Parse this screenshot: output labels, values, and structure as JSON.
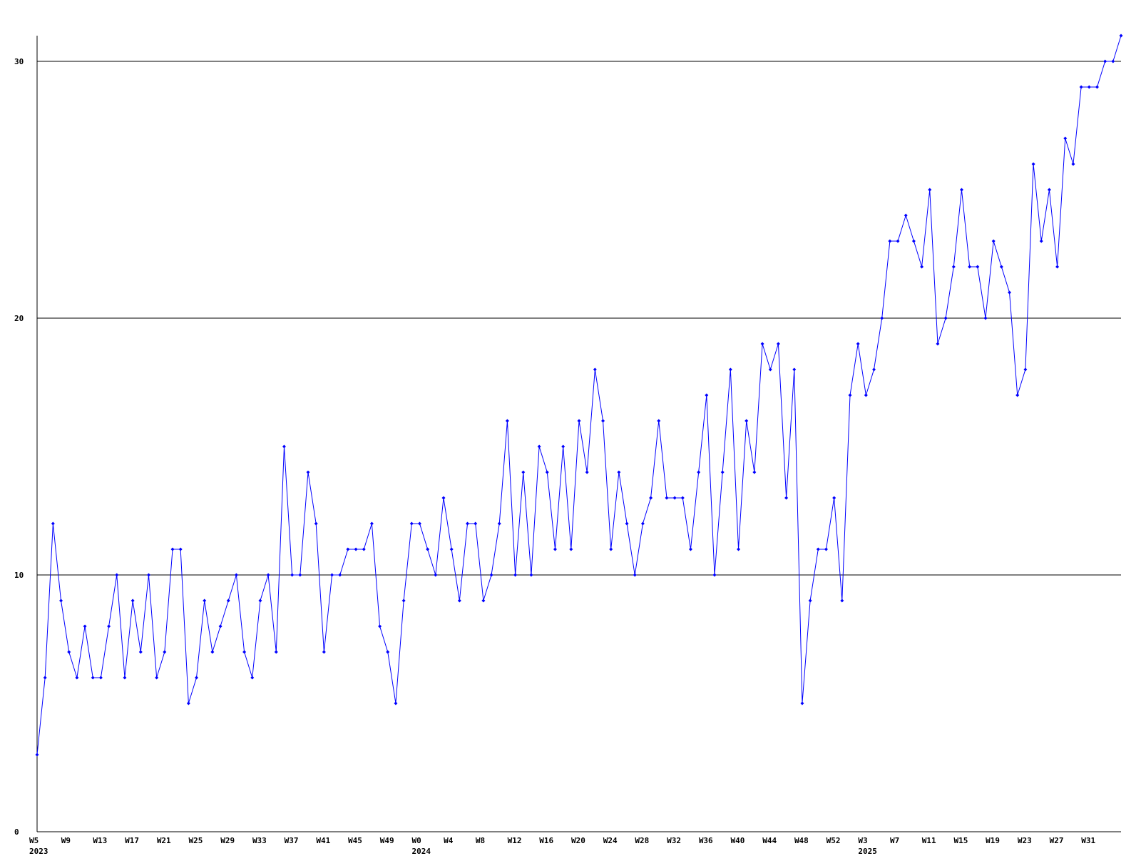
{
  "chart_data": {
    "type": "line",
    "categories": [
      "W5",
      null,
      null,
      null,
      "W9",
      null,
      null,
      null,
      "W13",
      null,
      null,
      null,
      "W17",
      null,
      null,
      null,
      "W21",
      null,
      null,
      null,
      "W25",
      null,
      null,
      null,
      "W29",
      null,
      null,
      null,
      "W33",
      null,
      null,
      null,
      "W37",
      null,
      null,
      null,
      "W41",
      null,
      null,
      null,
      "W45",
      null,
      null,
      null,
      "W49",
      null,
      null,
      null,
      "W0",
      null,
      null,
      null,
      "W4",
      null,
      null,
      null,
      "W8",
      null,
      null,
      null,
      "W12",
      null,
      null,
      null,
      "W16",
      null,
      null,
      null,
      "W20",
      null,
      null,
      null,
      "W24",
      null,
      null,
      null,
      "W28",
      null,
      null,
      null,
      "W32",
      null,
      null,
      null,
      "W36",
      null,
      null,
      null,
      "W40",
      null,
      null,
      null,
      "W44",
      null,
      null,
      null,
      "W48",
      null,
      null,
      null,
      "W52",
      null,
      null,
      null,
      "W3",
      null,
      null,
      null,
      "W7",
      null,
      null,
      null,
      "W11",
      null,
      null,
      null,
      "W15",
      null,
      null,
      null,
      "W19",
      null,
      null,
      null,
      "W23",
      null,
      null,
      null,
      "W27",
      null,
      null,
      null,
      "W31",
      null,
      null,
      null,
      null
    ],
    "category_years": [
      "2023",
      null,
      null,
      null,
      null,
      null,
      null,
      null,
      null,
      null,
      null,
      null,
      null,
      null,
      null,
      null,
      null,
      null,
      null,
      null,
      null,
      null,
      null,
      null,
      null,
      null,
      null,
      null,
      null,
      null,
      null,
      null,
      null,
      null,
      null,
      null,
      null,
      null,
      null,
      null,
      null,
      null,
      null,
      null,
      null,
      null,
      null,
      null,
      "2024",
      null,
      null,
      null,
      null,
      null,
      null,
      null,
      null,
      null,
      null,
      null,
      null,
      null,
      null,
      null,
      null,
      null,
      null,
      null,
      null,
      null,
      null,
      null,
      null,
      null,
      null,
      null,
      null,
      null,
      null,
      null,
      null,
      null,
      null,
      null,
      null,
      null,
      null,
      null,
      null,
      null,
      null,
      null,
      null,
      null,
      null,
      null,
      null,
      null,
      null,
      null,
      null,
      null,
      null,
      null,
      "2025",
      null,
      null,
      null,
      null,
      null,
      null,
      null,
      null,
      null,
      null,
      null,
      null,
      null,
      null,
      null,
      null,
      null,
      null,
      null,
      null,
      null,
      null,
      null,
      null,
      null,
      null,
      null,
      null,
      null,
      null,
      null
    ],
    "series": [
      {
        "color": "#0000ff",
        "values": [
          3,
          6,
          12,
          9,
          7,
          6,
          8,
          6,
          6,
          8,
          10,
          6,
          9,
          7,
          10,
          6,
          7,
          11,
          11,
          5,
          6,
          9,
          7,
          8,
          9,
          10,
          7,
          6,
          9,
          10,
          7,
          15,
          10,
          10,
          14,
          12,
          7,
          10,
          10,
          11,
          11,
          11,
          12,
          8,
          7,
          5,
          9,
          12,
          12,
          11,
          10,
          13,
          11,
          9,
          12,
          12,
          9,
          10,
          12,
          16,
          10,
          14,
          10,
          15,
          14,
          11,
          15,
          11,
          16,
          14,
          18,
          16,
          11,
          14,
          12,
          10,
          12,
          13,
          16,
          13,
          13,
          13,
          11,
          14,
          17,
          10,
          14,
          18,
          11,
          16,
          14,
          19,
          18,
          19,
          13,
          18,
          5,
          9,
          11,
          11,
          13,
          9,
          17,
          19,
          17,
          18,
          20,
          23,
          23,
          24,
          23,
          22,
          25,
          19,
          20,
          22,
          25,
          22,
          22,
          20,
          23,
          22,
          21,
          17,
          18,
          26,
          23,
          25,
          22,
          27,
          26,
          29,
          29,
          29,
          30,
          30,
          31
        ]
      }
    ],
    "ylim": [
      0,
      31
    ],
    "yticks": [
      0,
      10,
      20,
      30
    ],
    "grid": true
  }
}
